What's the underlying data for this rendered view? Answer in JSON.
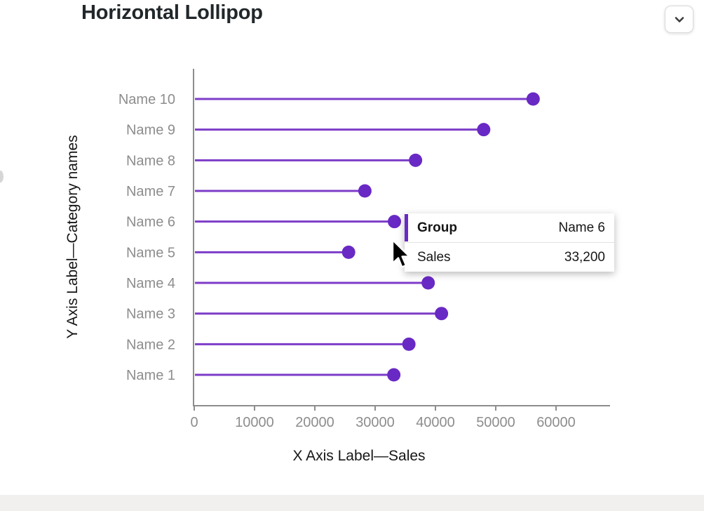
{
  "header": {
    "title": "Horizontal Lollipop"
  },
  "chart_data": {
    "type": "lollipop",
    "orientation": "horizontal",
    "categories": [
      "Name 1",
      "Name 2",
      "Name 3",
      "Name 4",
      "Name 5",
      "Name 6",
      "Name 7",
      "Name 8",
      "Name 9",
      "Name 10"
    ],
    "values": [
      33100,
      35600,
      41000,
      38800,
      25600,
      33200,
      28300,
      36700,
      48000,
      56200
    ],
    "series_name": "Sales",
    "xlabel": "X Axis Label—Sales",
    "ylabel": "Y Axis Label—Category names",
    "x_ticks": [
      0,
      10000,
      20000,
      30000,
      40000,
      50000,
      60000
    ],
    "x_tick_labels": [
      "0",
      "10000",
      "20000",
      "30000",
      "40000",
      "50000",
      "60000"
    ],
    "xlim": [
      0,
      69000
    ],
    "grid": false,
    "category_order_top_to_bottom": [
      "Name 10",
      "Name 9",
      "Name 8",
      "Name 7",
      "Name 6",
      "Name 5",
      "Name 4",
      "Name 3",
      "Name 2",
      "Name 1"
    ],
    "colors": {
      "dot": "#6929c4",
      "line": "#7d3cc8",
      "axis": "#8d8d8d",
      "tick_text": "#8d8d8d",
      "axis_title_text": "#161616"
    }
  },
  "tooltip": {
    "accent_color": "#6929c4",
    "rows": [
      {
        "label": "Group",
        "value": "Name 6"
      },
      {
        "label": "Sales",
        "value": "33,200"
      }
    ]
  }
}
